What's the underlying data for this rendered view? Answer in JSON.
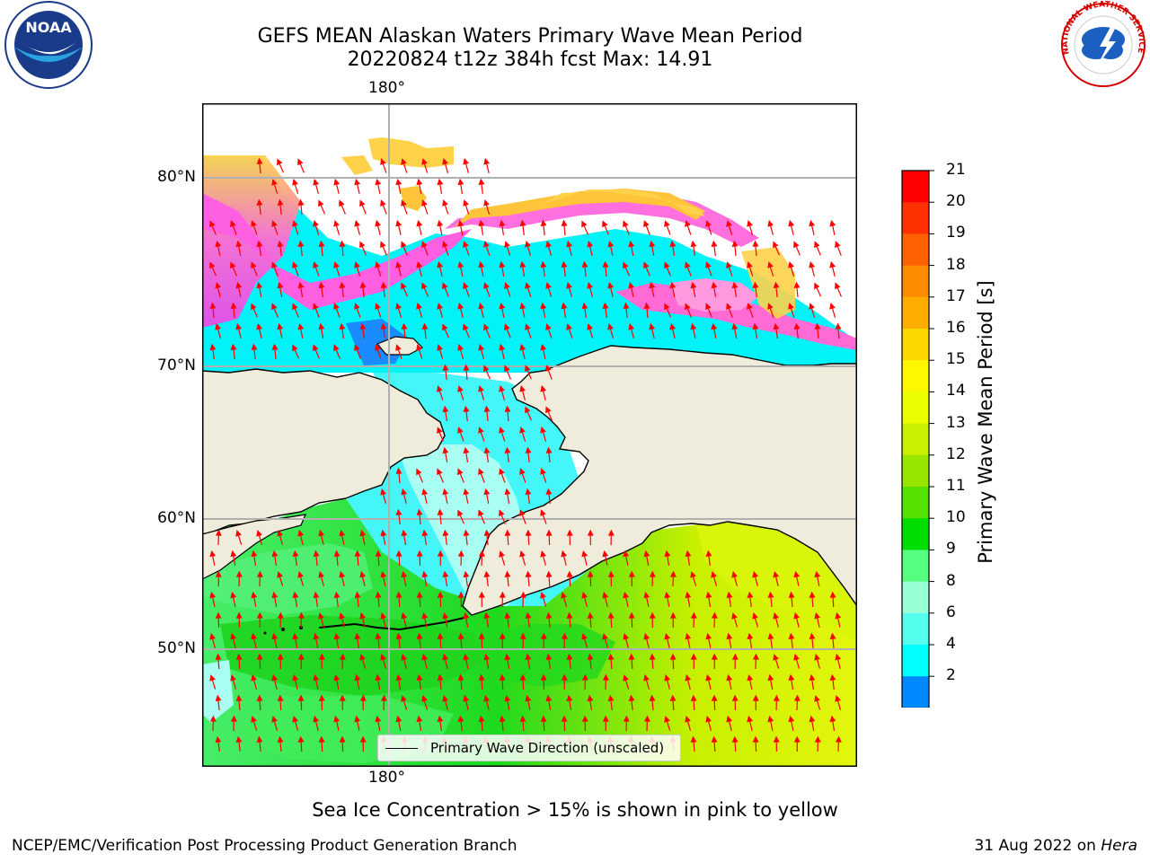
{
  "header": {
    "title_line1": "GEFS MEAN Alaskan Waters Primary Wave Mean Period",
    "title_line2": "20220824 t12z 384h fcst   Max: 14.91"
  },
  "logos": {
    "left": {
      "icon": "noaa-logo-icon",
      "text": "NOAA"
    },
    "right": {
      "icon": "nws-logo-icon",
      "text": "NATIONAL WEATHER SERVICE"
    }
  },
  "map": {
    "lat_labels": [
      "80°N",
      "70°N",
      "60°N",
      "50°N"
    ],
    "lon_label_top": "180°",
    "lon_label_bottom": "180°",
    "land_color": "#efecdc",
    "arrow_color": "#ff0000",
    "grid": true,
    "legend_label": "Primary Wave Direction (unscaled)"
  },
  "colorbar": {
    "label": "Primary Wave Mean Period [s]",
    "ticks": [
      "21",
      "20",
      "19",
      "18",
      "17",
      "16",
      "15",
      "14",
      "13",
      "12",
      "11",
      "10",
      "9",
      "8",
      "6",
      "4",
      "2"
    ],
    "colors": [
      "#ff0000",
      "#ff3000",
      "#ff6000",
      "#ff8c00",
      "#ffae00",
      "#ffd700",
      "#fff700",
      "#eaff00",
      "#c8f000",
      "#96e600",
      "#55e000",
      "#00dd00",
      "#55ff7f",
      "#99ffd5",
      "#55ffee",
      "#00ffff",
      "#0088ff"
    ],
    "extend_color": "#0000ff"
  },
  "caption": "Sea Ice Concentration > 15% is shown in pink to yellow",
  "footer": {
    "left": "NCEP/EMC/Verification Post Processing Product Generation Branch",
    "date": "31 Aug 2022 on ",
    "host": "Hera"
  }
}
